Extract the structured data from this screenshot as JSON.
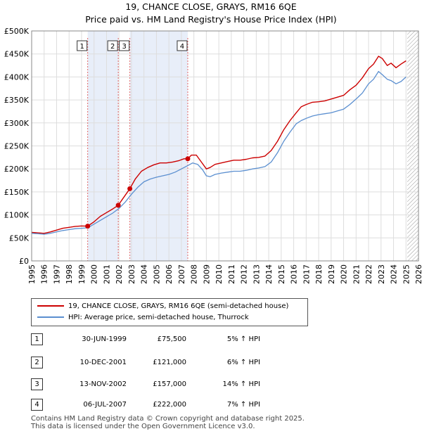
{
  "chart_data": {
    "type": "line",
    "title": "19, CHANCE CLOSE, GRAYS, RM16 6QE",
    "subtitle": "Price paid vs. HM Land Registry's House Price Index (HPI)",
    "xlim": [
      1995,
      2026
    ],
    "ylim": [
      0,
      500000
    ],
    "x_ticks": [
      1995,
      1996,
      1997,
      1998,
      1999,
      2000,
      2001,
      2002,
      2003,
      2004,
      2005,
      2006,
      2007,
      2008,
      2009,
      2010,
      2011,
      2012,
      2013,
      2014,
      2015,
      2016,
      2017,
      2018,
      2019,
      2020,
      2021,
      2022,
      2023,
      2024,
      2025,
      2026
    ],
    "y_ticks": [
      {
        "value": 0,
        "label": "£0"
      },
      {
        "value": 50000,
        "label": "£50K"
      },
      {
        "value": 100000,
        "label": "£100K"
      },
      {
        "value": 150000,
        "label": "£150K"
      },
      {
        "value": 200000,
        "label": "£200K"
      },
      {
        "value": 250000,
        "label": "£250K"
      },
      {
        "value": 300000,
        "label": "£300K"
      },
      {
        "value": 350000,
        "label": "£350K"
      },
      {
        "value": 400000,
        "label": "£400K"
      },
      {
        "value": 450000,
        "label": "£450K"
      },
      {
        "value": 500000,
        "label": "£500K"
      }
    ],
    "grid": true,
    "colors": {
      "property": "#cc0000",
      "hpi": "#5b8fd0",
      "shade": "#e8eef9",
      "grid": "#dddddd",
      "marker_line": "#e06666"
    },
    "shaded_periods": [
      [
        1999.49,
        2001.94
      ],
      [
        2002.87,
        2007.51
      ]
    ],
    "future_hatch_from": 2025.1,
    "series": [
      {
        "name": "19, CHANCE CLOSE, GRAYS, RM16 6QE (semi-detached house)",
        "key": "property",
        "x": [
          1995.0,
          1995.5,
          1996.0,
          1996.5,
          1997.0,
          1997.5,
          1998.0,
          1998.5,
          1999.0,
          1999.49,
          2000.0,
          2000.5,
          2001.0,
          2001.5,
          2001.94,
          2002.3,
          2002.87,
          2003.3,
          2003.8,
          2004.3,
          2004.8,
          2005.3,
          2005.8,
          2006.3,
          2006.8,
          2007.2,
          2007.51,
          2007.8,
          2008.2,
          2008.6,
          2009.0,
          2009.3,
          2009.7,
          2010.2,
          2010.7,
          2011.2,
          2011.7,
          2012.2,
          2012.7,
          2013.2,
          2013.7,
          2014.2,
          2014.7,
          2015.2,
          2015.7,
          2016.2,
          2016.6,
          2017.0,
          2017.5,
          2018.0,
          2018.5,
          2019.0,
          2019.5,
          2020.0,
          2020.5,
          2021.0,
          2021.5,
          2022.0,
          2022.4,
          2022.8,
          2023.1,
          2023.5,
          2023.8,
          2024.2,
          2024.6,
          2025.0
        ],
        "y": [
          62000,
          61000,
          60000,
          63000,
          67000,
          71000,
          73000,
          75000,
          76000,
          75500,
          85000,
          97000,
          105000,
          113000,
          121000,
          135000,
          157000,
          178000,
          195000,
          203000,
          209000,
          213000,
          213000,
          215000,
          218000,
          222000,
          222000,
          230000,
          230000,
          215000,
          200000,
          203000,
          210000,
          213000,
          216000,
          219000,
          219000,
          221000,
          224000,
          225000,
          228000,
          240000,
          260000,
          285000,
          305000,
          322000,
          335000,
          340000,
          345000,
          346000,
          348000,
          352000,
          356000,
          360000,
          372000,
          382000,
          398000,
          418000,
          428000,
          445000,
          440000,
          425000,
          430000,
          420000,
          428000,
          435000
        ]
      },
      {
        "name": "HPI: Average price, semi-detached house, Thurrock",
        "key": "hpi",
        "x": [
          1995.0,
          1995.5,
          1996.0,
          1996.5,
          1997.0,
          1997.5,
          1998.0,
          1998.5,
          1999.0,
          1999.5,
          2000.0,
          2000.5,
          2001.0,
          2001.5,
          2002.0,
          2002.5,
          2003.0,
          2003.5,
          2004.0,
          2004.5,
          2005.0,
          2005.5,
          2006.0,
          2006.5,
          2007.0,
          2007.5,
          2007.9,
          2008.3,
          2008.7,
          2009.0,
          2009.3,
          2009.7,
          2010.2,
          2010.7,
          2011.2,
          2011.7,
          2012.2,
          2012.7,
          2013.2,
          2013.7,
          2014.2,
          2014.7,
          2015.2,
          2015.7,
          2016.2,
          2016.6,
          2017.0,
          2017.5,
          2018.0,
          2018.5,
          2019.0,
          2019.5,
          2020.0,
          2020.5,
          2021.0,
          2021.5,
          2022.0,
          2022.4,
          2022.8,
          2023.1,
          2023.5,
          2023.8,
          2024.2,
          2024.6,
          2025.0
        ],
        "y": [
          60000,
          59000,
          58000,
          60000,
          63000,
          66000,
          68000,
          70000,
          71000,
          72000,
          80000,
          88000,
          96000,
          104000,
          114000,
          128000,
          145000,
          160000,
          172000,
          178000,
          182000,
          185000,
          188000,
          193000,
          200000,
          207000,
          213000,
          210000,
          198000,
          185000,
          183000,
          188000,
          191000,
          193000,
          195000,
          195000,
          197000,
          200000,
          202000,
          205000,
          215000,
          235000,
          260000,
          280000,
          298000,
          305000,
          310000,
          315000,
          318000,
          320000,
          322000,
          326000,
          330000,
          340000,
          352000,
          365000,
          385000,
          395000,
          412000,
          405000,
          395000,
          392000,
          385000,
          390000,
          400000
        ]
      }
    ],
    "sales": [
      {
        "num": "1",
        "x": 1999.49,
        "price": 75500
      },
      {
        "num": "2",
        "x": 2001.94,
        "price": 121000
      },
      {
        "num": "3",
        "x": 2002.87,
        "price": 157000
      },
      {
        "num": "4",
        "x": 2007.51,
        "price": 222000
      }
    ]
  },
  "legend": {
    "property_label": "19, CHANCE CLOSE, GRAYS, RM16 6QE (semi-detached house)",
    "hpi_label": "HPI: Average price, semi-detached house, Thurrock"
  },
  "transactions": [
    {
      "num": "1",
      "date": "30-JUN-1999",
      "price": "£75,500",
      "hpi": "5% ↑ HPI"
    },
    {
      "num": "2",
      "date": "10-DEC-2001",
      "price": "£121,000",
      "hpi": "6% ↑ HPI"
    },
    {
      "num": "3",
      "date": "13-NOV-2002",
      "price": "£157,000",
      "hpi": "14% ↑ HPI"
    },
    {
      "num": "4",
      "date": "06-JUL-2007",
      "price": "£222,000",
      "hpi": "7% ↑ HPI"
    }
  ],
  "footer": {
    "line1": "Contains HM Land Registry data © Crown copyright and database right 2025.",
    "line2": "This data is licensed under the Open Government Licence v3.0."
  }
}
